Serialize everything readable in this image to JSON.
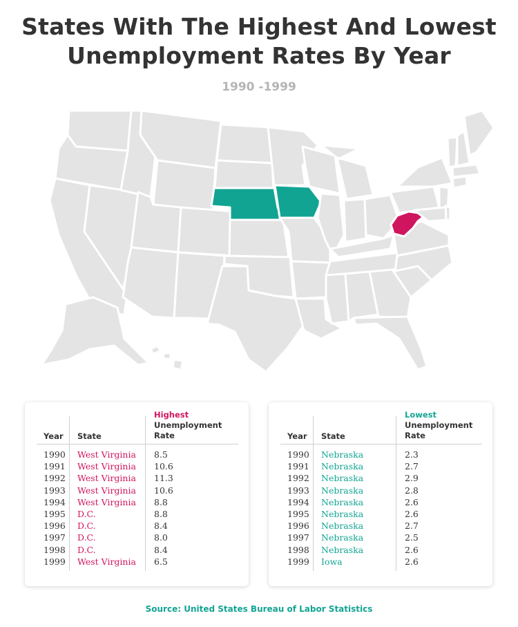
{
  "title_line1": "States With The Highest And Lowest",
  "title_line2": "Unemployment Rates By Year",
  "subtitle": "1990 -1999",
  "map": {
    "base_color": "#e4e4e4",
    "lowest_color": "#12a493",
    "highest_color": "#d0155f",
    "highlighted_lowest": [
      "Nebraska",
      "Iowa"
    ],
    "highlighted_highest": [
      "West Virginia",
      "D.C."
    ]
  },
  "highest_table": {
    "col_year": "Year",
    "col_state": "State",
    "col_rate_accent": "Highest",
    "col_rate_line2": "Unemployment",
    "col_rate_line3": "Rate",
    "rows": [
      {
        "year": "1990",
        "state": "West Virginia",
        "rate": "8.5"
      },
      {
        "year": "1991",
        "state": "West Virginia",
        "rate": "10.6"
      },
      {
        "year": "1992",
        "state": "West Virginia",
        "rate": "11.3"
      },
      {
        "year": "1993",
        "state": "West Virginia",
        "rate": "10.6"
      },
      {
        "year": "1994",
        "state": "West Virginia",
        "rate": "8.8"
      },
      {
        "year": "1995",
        "state": "D.C.",
        "rate": "8.8"
      },
      {
        "year": "1996",
        "state": "D.C.",
        "rate": "8.4"
      },
      {
        "year": "1997",
        "state": "D.C.",
        "rate": "8.0"
      },
      {
        "year": "1998",
        "state": "D.C.",
        "rate": "8.4"
      },
      {
        "year": "1999",
        "state": "West Virginia",
        "rate": "6.5"
      }
    ]
  },
  "lowest_table": {
    "col_year": "Year",
    "col_state": "State",
    "col_rate_accent": "Lowest",
    "col_rate_line2": "Unemployment",
    "col_rate_line3": "Rate",
    "rows": [
      {
        "year": "1990",
        "state": "Nebraska",
        "rate": "2.3"
      },
      {
        "year": "1991",
        "state": "Nebraska",
        "rate": "2.7"
      },
      {
        "year": "1992",
        "state": "Nebraska",
        "rate": "2.9"
      },
      {
        "year": "1993",
        "state": "Nebraska",
        "rate": "2.8"
      },
      {
        "year": "1994",
        "state": "Nebraska",
        "rate": "2.6"
      },
      {
        "year": "1995",
        "state": "Nebraska",
        "rate": "2.6"
      },
      {
        "year": "1996",
        "state": "Nebraska",
        "rate": "2.7"
      },
      {
        "year": "1997",
        "state": "Nebraska",
        "rate": "2.5"
      },
      {
        "year": "1998",
        "state": "Nebraska",
        "rate": "2.6"
      },
      {
        "year": "1999",
        "state": "Iowa",
        "rate": "2.6"
      }
    ]
  },
  "source": "Source: United States Bureau of Labor Statistics"
}
